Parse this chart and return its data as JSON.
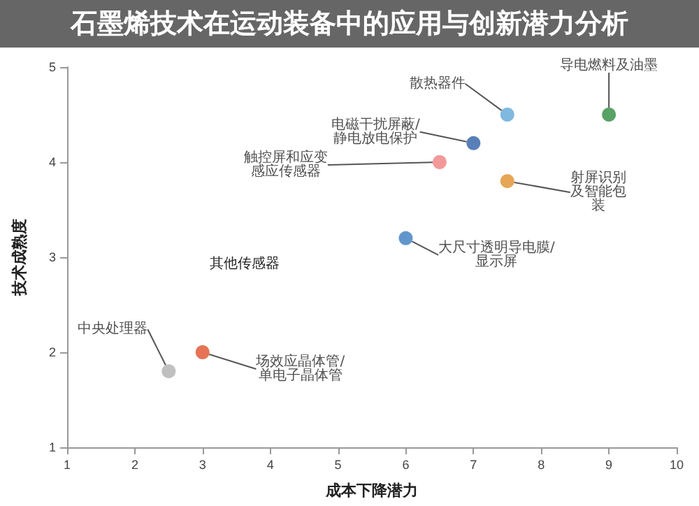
{
  "chart_data": {
    "type": "scatter",
    "title": "石墨烯技术在运动装备中的应用与创新潜力分析",
    "xlabel": "成本下降潜力",
    "ylabel": "技术成熟度",
    "xlim": [
      1,
      10
    ],
    "xticks": [
      1,
      2,
      3,
      4,
      5,
      6,
      7,
      8,
      9,
      10
    ],
    "ylim": [
      1,
      5
    ],
    "yticks": [
      1,
      2,
      3,
      4,
      5
    ],
    "grid": false,
    "legend": false,
    "marker": "circle",
    "annotations": [
      "其他传感器"
    ],
    "series": [
      {
        "name": "散热器件",
        "color": "#5fa8d8",
        "x": [
          7.5
        ],
        "values": [
          4.5
        ]
      },
      {
        "name": "导电燃料及油墨",
        "color": "#2e8b3e",
        "x": [
          9
        ],
        "values": [
          4.5
        ]
      },
      {
        "name": "电磁干扰屏蔽/静电放电保护",
        "color": "#2f5fa8",
        "x": [
          7
        ],
        "values": [
          4.2
        ]
      },
      {
        "name": "触控屏和应变感应传感器",
        "color": "#f08080",
        "x": [
          6.5
        ],
        "values": [
          4
        ]
      },
      {
        "name": "射屏识别及智能包装",
        "color": "#e0902a",
        "x": [
          7.5
        ],
        "values": [
          3.8
        ]
      },
      {
        "name": "大尺寸透明导电膜/显示屏",
        "color": "#3a7cc0",
        "x": [
          6
        ],
        "values": [
          3.2
        ]
      },
      {
        "name": "中央处理器",
        "color": "#b0b0b0",
        "x": [
          2.5
        ],
        "values": [
          1.8
        ]
      },
      {
        "name": "场效应晶体管/单电子晶体管",
        "color": "#e0502a",
        "x": [
          3
        ],
        "values": [
          2
        ]
      }
    ]
  }
}
